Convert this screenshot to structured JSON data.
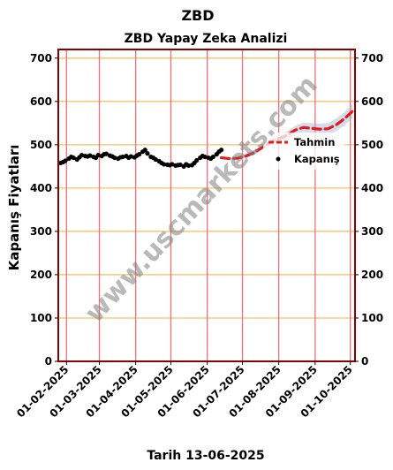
{
  "chart_data": {
    "type": "line",
    "page_title": "ZBD",
    "title": "ZBD Yapay Zeka Analizi",
    "xlabel": "Tarih 13-06-2025",
    "ylabel": "Kapanış Fiyatları",
    "ylim": [
      0,
      720
    ],
    "yticks": [
      0,
      100,
      200,
      300,
      400,
      500,
      600,
      700
    ],
    "xlim": [
      "2025-01-25",
      "2025-10-05"
    ],
    "xticks": [
      "2025-02-01",
      "2025-03-01",
      "2025-04-01",
      "2025-05-01",
      "2025-06-01",
      "2025-07-01",
      "2025-08-01",
      "2025-09-01",
      "2025-10-01"
    ],
    "xtick_labels": [
      "01-02-2025",
      "01-03-2025",
      "01-04-2025",
      "01-05-2025",
      "01-06-2025",
      "01-07-2025",
      "01-08-2025",
      "01-09-2025",
      "01-10-2025"
    ],
    "grid": true,
    "legend_position": "right",
    "watermark": "www.uscmarkets.com",
    "series": [
      {
        "name": "Kapanış",
        "style": "scatter",
        "color": "#000000",
        "x": [
          "2025-01-27",
          "2025-01-29",
          "2025-01-31",
          "2025-02-03",
          "2025-02-05",
          "2025-02-07",
          "2025-02-10",
          "2025-02-12",
          "2025-02-14",
          "2025-02-17",
          "2025-02-19",
          "2025-02-21",
          "2025-02-24",
          "2025-02-26",
          "2025-02-28",
          "2025-03-03",
          "2025-03-05",
          "2025-03-07",
          "2025-03-10",
          "2025-03-12",
          "2025-03-14",
          "2025-03-17",
          "2025-03-19",
          "2025-03-21",
          "2025-03-24",
          "2025-03-26",
          "2025-03-28",
          "2025-03-31",
          "2025-04-02",
          "2025-04-04",
          "2025-04-07",
          "2025-04-09",
          "2025-04-11",
          "2025-04-14",
          "2025-04-16",
          "2025-04-18",
          "2025-04-21",
          "2025-04-23",
          "2025-04-25",
          "2025-04-28",
          "2025-04-30",
          "2025-05-02",
          "2025-05-05",
          "2025-05-07",
          "2025-05-09",
          "2025-05-12",
          "2025-05-14",
          "2025-05-16",
          "2025-05-19",
          "2025-05-21",
          "2025-05-23",
          "2025-05-26",
          "2025-05-28",
          "2025-05-30",
          "2025-06-02",
          "2025-06-04",
          "2025-06-06",
          "2025-06-09",
          "2025-06-11",
          "2025-06-13"
        ],
        "values": [
          458,
          460,
          463,
          468,
          472,
          470,
          466,
          471,
          476,
          474,
          473,
          475,
          472,
          470,
          476,
          474,
          478,
          479,
          475,
          473,
          470,
          468,
          471,
          472,
          474,
          470,
          473,
          471,
          475,
          478,
          484,
          488,
          480,
          472,
          470,
          466,
          462,
          458,
          455,
          454,
          453,
          455,
          452,
          453,
          454,
          450,
          455,
          452,
          453,
          458,
          464,
          470,
          474,
          472,
          470,
          468,
          472,
          478,
          484,
          488
        ]
      },
      {
        "name": "Tahmin",
        "style": "dashed-line",
        "color": "#e41a1c",
        "x": [
          "2025-06-13",
          "2025-06-20",
          "2025-06-27",
          "2025-07-04",
          "2025-07-11",
          "2025-07-18",
          "2025-07-25",
          "2025-08-01",
          "2025-08-08",
          "2025-08-15",
          "2025-08-22",
          "2025-08-29",
          "2025-09-05",
          "2025-09-12",
          "2025-09-19",
          "2025-09-26",
          "2025-10-03"
        ],
        "values": [
          470,
          468,
          469,
          474,
          482,
          494,
          506,
          514,
          522,
          534,
          540,
          538,
          536,
          537,
          546,
          560,
          578
        ]
      }
    ]
  }
}
